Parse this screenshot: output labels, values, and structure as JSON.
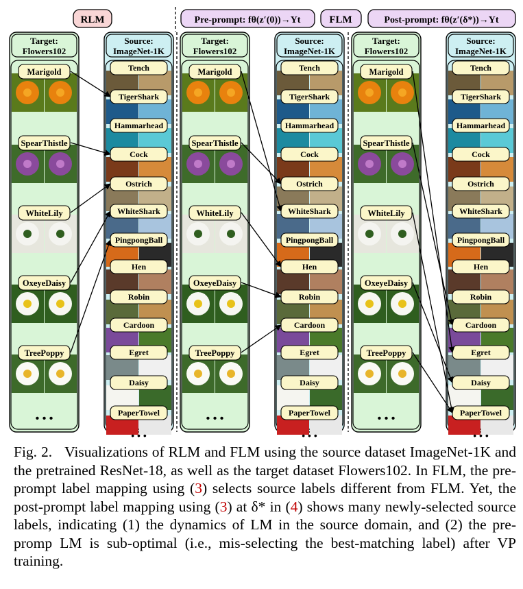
{
  "headers": {
    "rlm": "RLM",
    "pre_prompt": "Pre-prompt: fθ(z′(0))→Yt",
    "flm": "FLM",
    "post_prompt": "Post-prompt: fθ(z′(δ*))→Yt"
  },
  "panels": [
    {
      "target_title": [
        "Target:",
        "Flowers102"
      ],
      "source_title": [
        "Source:",
        "ImageNet-1K"
      ]
    },
    {
      "target_title": [
        "Target:",
        "Flowers102"
      ],
      "source_title": [
        "Source:",
        "ImageNet-1K"
      ]
    },
    {
      "target_title": [
        "Target:",
        "Flowers102"
      ],
      "source_title": [
        "Source:",
        "ImageNet-1K"
      ]
    }
  ],
  "target_labels": [
    "Marigold",
    "SpearThistle",
    "WhiteLily",
    "OxeyeDaisy",
    "TreePoppy"
  ],
  "source_labels": [
    "Tench",
    "TigerShark",
    "Hammarhead",
    "Cock",
    "Ostrich",
    "WhiteShark",
    "PingpongBall",
    "Hen",
    "Robin",
    "Cardoon",
    "Egret",
    "Daisy",
    "PaperTowel"
  ],
  "ellipsis": "• • •",
  "mappings": {
    "rlm": [
      [
        0,
        1
      ],
      [
        1,
        3
      ],
      [
        2,
        4
      ],
      [
        3,
        5
      ],
      [
        4,
        6
      ]
    ],
    "pre": [
      [
        0,
        5
      ],
      [
        1,
        4
      ],
      [
        2,
        7
      ],
      [
        3,
        8
      ],
      [
        4,
        9
      ]
    ],
    "post": [
      [
        0,
        10
      ],
      [
        1,
        9
      ],
      [
        2,
        12
      ],
      [
        3,
        11
      ],
      [
        4,
        12
      ]
    ]
  },
  "colors": {
    "target_bg": "#d9f5d7",
    "source_bg": "#cdeff2",
    "label_bg": "#fbf6c9",
    "rlm_bg": "#f9d6d6",
    "flm_bg": "#ecd6f5"
  },
  "caption": {
    "fig_label": "Fig. 2.",
    "text_1": "Visualizations of RLM and FLM using the source dataset ImageNet-1K and the pretrained ResNet-18, as well as the target dataset Flowers102. In FLM, the pre-prompt label mapping using (",
    "ref_1": "3",
    "text_2": ") selects source labels different from FLM. Yet, the post-prompt label mapping using (",
    "ref_2": "3",
    "text_3": ") at δ* in (",
    "ref_3": "4",
    "text_4": ") shows many newly-selected source labels, indicating (1) the dynamics of LM in the source domain, and (2) the pre-promp LM is sub-optimal (i.e., mis-selecting the best-matching label) after VP training."
  }
}
